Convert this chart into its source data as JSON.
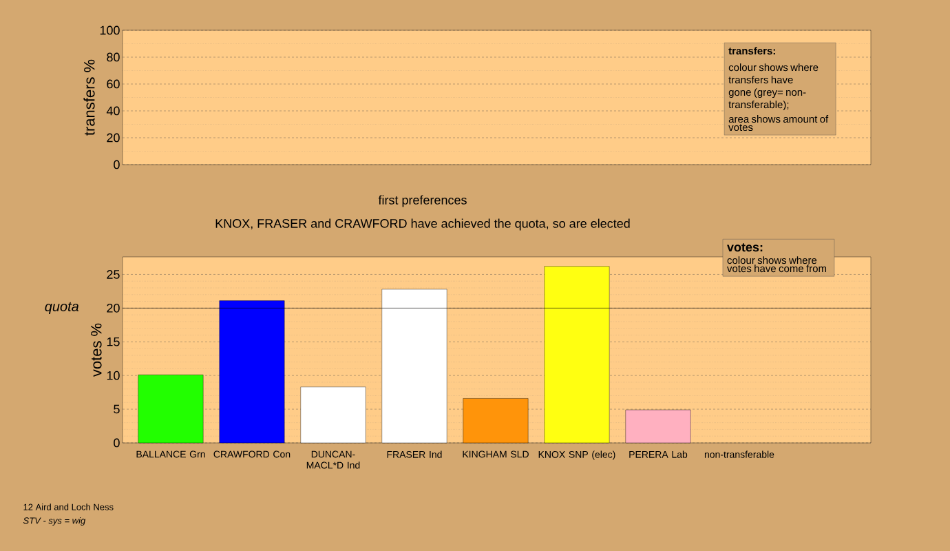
{
  "chart_data": [
    {
      "type": "bar",
      "ylabel": "transfers %",
      "categories": [
        null,
        null,
        null,
        null,
        null,
        null,
        null,
        null
      ],
      "values": [
        null,
        null,
        null,
        null,
        null,
        null,
        null,
        null
      ],
      "ylim": [
        0,
        100
      ],
      "yticks": [
        0,
        20,
        40,
        60,
        80,
        100
      ],
      "grid": "y",
      "tick_labels": "y",
      "annotations": [
        "transfers:",
        "colour shows where transfers have gone (grey= non-transferable);",
        "area shows amount of votes"
      ]
    },
    {
      "type": "bar",
      "title": "first preferences",
      "subtitle": "KNOX, FRASER and CRAWFORD have achieved the quota, so are elected",
      "ylabel": "votes %",
      "categories": [
        "BALLANCE Grn",
        "CRAWFORD Con",
        "DUNCAN-MACL*D Ind",
        "FRASER Ind",
        "KINGHAM SLD",
        "KNOX SNP (elec)",
        "PERERA Lab",
        "non-transferable"
      ],
      "values": [
        10.1,
        21.1,
        8.3,
        22.8,
        6.6,
        26.2,
        4.9,
        null
      ],
      "colors": [
        "#22ff00",
        "#0000ff",
        "#ffffff",
        "#ffffff",
        "#ff940a",
        "#ffff11",
        "#ffb0c0",
        "#808080"
      ],
      "ylim": [
        0,
        27.6
      ],
      "yticks": [
        0,
        5,
        10,
        15,
        20,
        25
      ],
      "grid": "y",
      "ref_lines": [
        {
          "axis": "y",
          "value": 20,
          "label": "quota"
        }
      ],
      "annotations": [
        "votes:",
        "colour shows where votes have come from",
        "12 Aird and Loch Ness",
        "STV - sys = wig"
      ]
    }
  ]
}
